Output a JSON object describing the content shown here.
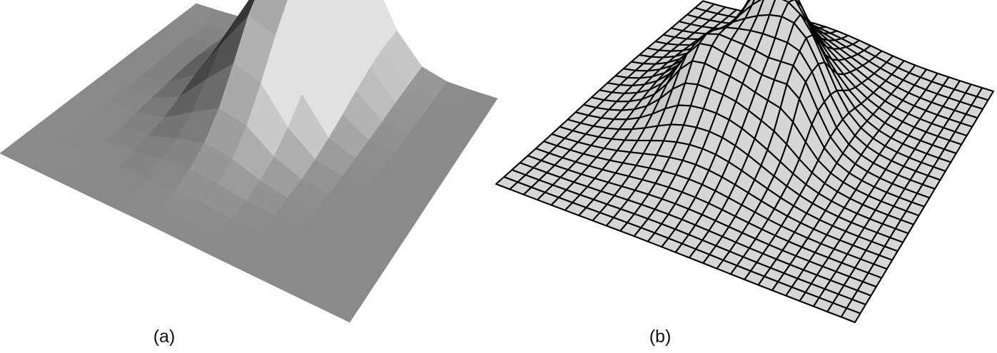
{
  "figure": {
    "panels": [
      {
        "id": "a",
        "caption": "(a)",
        "style": "flat-shaded surface"
      },
      {
        "id": "b",
        "caption": "(b)",
        "style": "wireframe mesh surface"
      }
    ],
    "colors": {
      "background": "#ffffff",
      "mesh_line": "#000000",
      "mesh_fill": "#d6d6d6",
      "surface_gray": "#8a8a8a"
    }
  }
}
